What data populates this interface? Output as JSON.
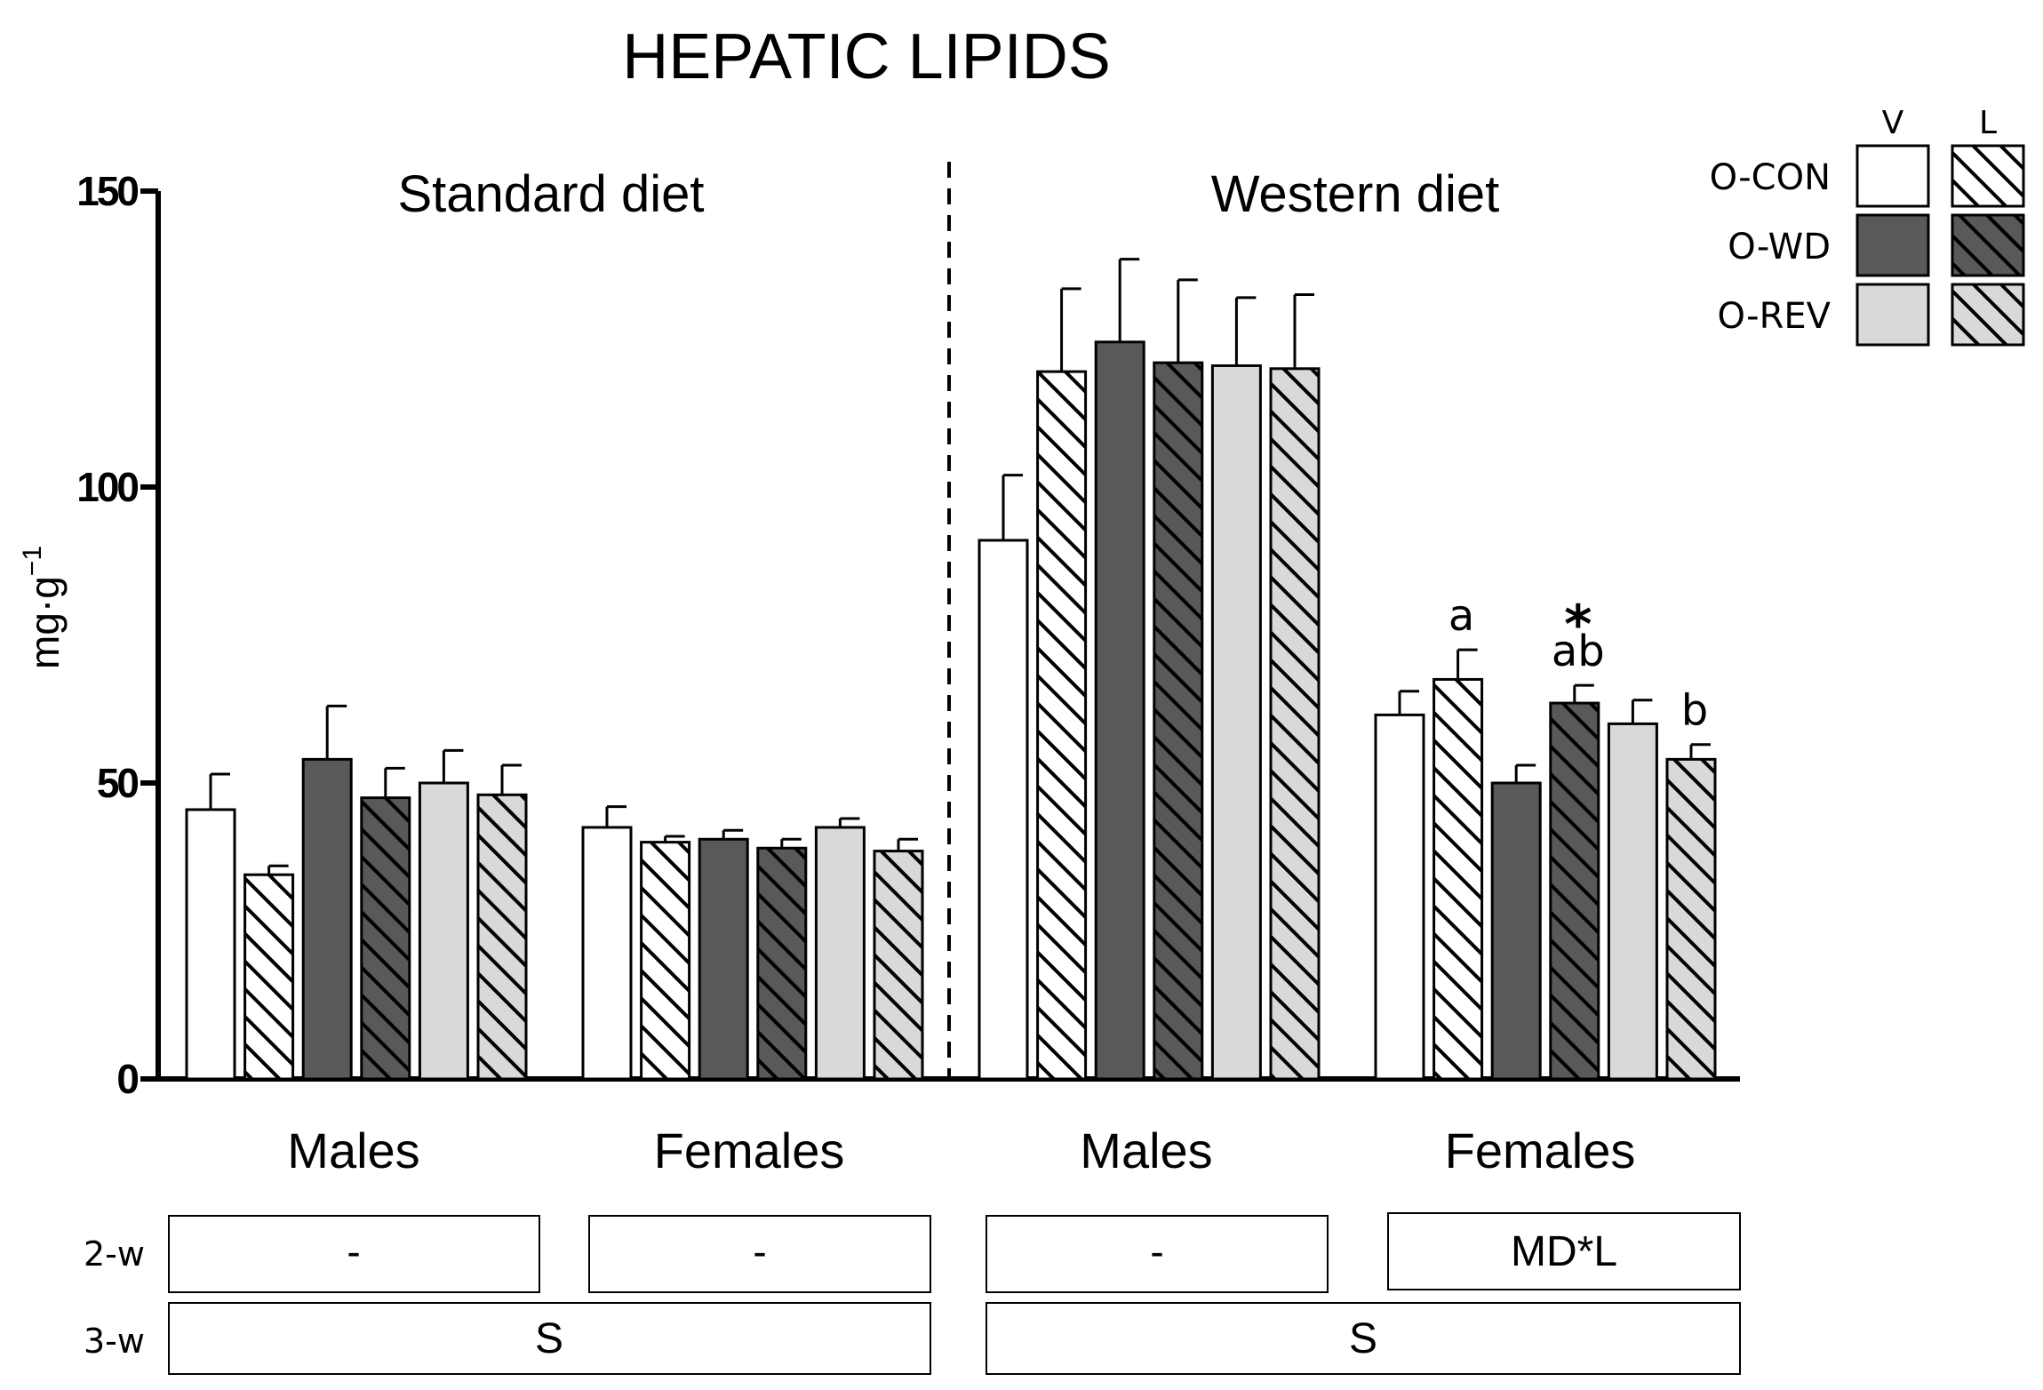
{
  "chart_data": {
    "type": "bar",
    "title": "HEPATIC LIPIDS",
    "ylabel": "mg·g",
    "ylabel_superscript": "−1",
    "ylim": [
      0,
      150
    ],
    "yticks": [
      0,
      50,
      100,
      150
    ],
    "panels": [
      {
        "label": "Standard diet"
      },
      {
        "label": "Western diet"
      }
    ],
    "groups": [
      {
        "label": "Males",
        "diet": "Standard diet"
      },
      {
        "label": "Females",
        "diet": "Standard diet"
      },
      {
        "label": "Males",
        "diet": "Western diet"
      },
      {
        "label": "Females",
        "diet": "Western diet"
      }
    ],
    "series": [
      {
        "name": "O-CON V",
        "fill": "#ffffff",
        "hatch": false,
        "values": [
          45.5,
          42.5,
          91,
          61.5
        ],
        "errors": [
          6,
          3.5,
          11,
          4
        ]
      },
      {
        "name": "O-CON L",
        "fill": "#ffffff",
        "hatch": true,
        "values": [
          34.5,
          40,
          119.5,
          67.5
        ],
        "errors": [
          1.5,
          1,
          14,
          5
        ]
      },
      {
        "name": "O-WD V",
        "fill": "#595959",
        "hatch": false,
        "values": [
          54,
          40.5,
          124.5,
          50
        ],
        "errors": [
          9,
          1.5,
          14,
          3
        ]
      },
      {
        "name": "O-WD L",
        "fill": "#595959",
        "hatch": true,
        "values": [
          47.5,
          39,
          121,
          63.5
        ],
        "errors": [
          5,
          1.5,
          14,
          3
        ]
      },
      {
        "name": "O-REV V",
        "fill": "#d9d9d9",
        "hatch": false,
        "values": [
          50,
          42.5,
          120.5,
          60
        ],
        "errors": [
          5.5,
          1.5,
          11.5,
          4
        ]
      },
      {
        "name": "O-REV L",
        "fill": "#d9d9d9",
        "hatch": true,
        "values": [
          48,
          38.5,
          120,
          54
        ],
        "errors": [
          5,
          2,
          12.5,
          2.5
        ]
      }
    ],
    "bar_annotations": [
      {
        "group": 3,
        "series": 1,
        "text": "a"
      },
      {
        "group": 3,
        "series": 3,
        "text": "ab"
      },
      {
        "group": 3,
        "series": 3,
        "text": "*",
        "star": true
      },
      {
        "group": 3,
        "series": 5,
        "text": "b"
      }
    ],
    "legend": {
      "position": "top-right",
      "columns": [
        "V",
        "L"
      ],
      "rows": [
        {
          "label": "O-CON",
          "fill": "#ffffff"
        },
        {
          "label": "O-WD",
          "fill": "#595959"
        },
        {
          "label": "O-REV",
          "fill": "#d9d9d9"
        }
      ]
    },
    "stats_table": {
      "rows": [
        {
          "label": "2-w",
          "cells": [
            "-",
            "-",
            "-",
            "MD*L"
          ]
        },
        {
          "label": "3-w",
          "cells": [
            "S",
            "S"
          ]
        }
      ]
    }
  }
}
